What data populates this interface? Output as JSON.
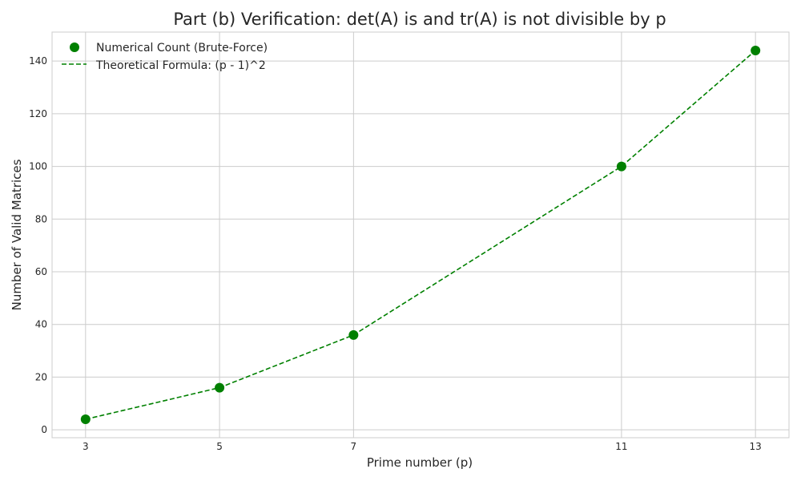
{
  "chart_data": {
    "type": "line",
    "title": "Part (b) Verification: det(A) is and tr(A) is not divisible by p",
    "xlabel": "Prime number (p)",
    "ylabel": "Number of Valid Matrices",
    "x": [
      3,
      5,
      7,
      11,
      13
    ],
    "x_ticks": [
      3,
      5,
      7,
      11,
      13
    ],
    "y_ticks": [
      0,
      20,
      40,
      60,
      80,
      100,
      120,
      140
    ],
    "xlim": [
      2.5,
      13.5
    ],
    "ylim": [
      -3,
      151
    ],
    "grid": true,
    "legend_position": "top-left",
    "series": [
      {
        "name": "Numerical Count (Brute-Force)",
        "style": "markers",
        "color": "#008000",
        "values": [
          4,
          16,
          36,
          100,
          144
        ]
      },
      {
        "name": "Theoretical Formula: (p - 1)^2",
        "style": "dashed-line",
        "color": "#008000",
        "values": [
          4,
          16,
          36,
          100,
          144
        ]
      }
    ]
  }
}
